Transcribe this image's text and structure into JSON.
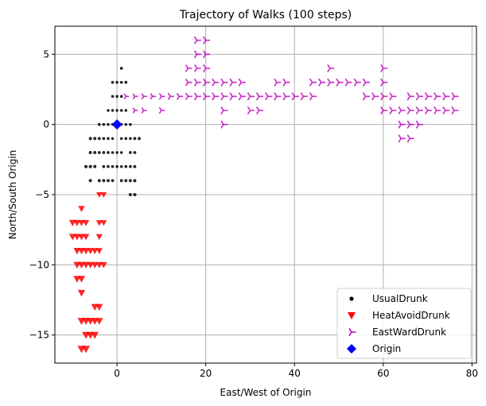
{
  "chart_data": {
    "type": "scatter",
    "title": "Trajectory of Walks (100 steps)",
    "xlabel": "East/West of Origin",
    "ylabel": "North/South Origin",
    "xlim": [
      -14,
      81
    ],
    "ylim": [
      -17,
      7
    ],
    "xticks": [
      0,
      20,
      40,
      60,
      80
    ],
    "yticks": [
      -15,
      -10,
      -5,
      0,
      5
    ],
    "grid": true,
    "legend_position": "bottom-right",
    "series": [
      {
        "name": "UsualDrunk",
        "marker": "circle",
        "color": "#000000",
        "points": [
          [
            -4,
            0
          ],
          [
            -3,
            0
          ],
          [
            -2,
            0
          ],
          [
            -1,
            0
          ],
          [
            0,
            0
          ],
          [
            1,
            0
          ],
          [
            2,
            0
          ],
          [
            3,
            0
          ],
          [
            -2,
            1
          ],
          [
            -1,
            1
          ],
          [
            0,
            1
          ],
          [
            1,
            1
          ],
          [
            2,
            1
          ],
          [
            -1,
            2
          ],
          [
            0,
            2
          ],
          [
            1,
            2
          ],
          [
            -1,
            3
          ],
          [
            0,
            3
          ],
          [
            1,
            3
          ],
          [
            2,
            3
          ],
          [
            1,
            4
          ],
          [
            -6,
            -1
          ],
          [
            -5,
            -1
          ],
          [
            -4,
            -1
          ],
          [
            -3,
            -1
          ],
          [
            -2,
            -1
          ],
          [
            -1,
            -1
          ],
          [
            1,
            -1
          ],
          [
            2,
            -1
          ],
          [
            3,
            -1
          ],
          [
            4,
            -1
          ],
          [
            5,
            -1
          ],
          [
            -6,
            -2
          ],
          [
            -5,
            -2
          ],
          [
            -4,
            -2
          ],
          [
            -3,
            -2
          ],
          [
            -2,
            -2
          ],
          [
            -1,
            -2
          ],
          [
            0,
            -2
          ],
          [
            1,
            -2
          ],
          [
            3,
            -2
          ],
          [
            4,
            -2
          ],
          [
            -7,
            -3
          ],
          [
            -6,
            -3
          ],
          [
            -5,
            -3
          ],
          [
            -3,
            -3
          ],
          [
            -2,
            -3
          ],
          [
            -1,
            -3
          ],
          [
            0,
            -3
          ],
          [
            1,
            -3
          ],
          [
            2,
            -3
          ],
          [
            3,
            -3
          ],
          [
            4,
            -3
          ],
          [
            -6,
            -4
          ],
          [
            -4,
            -4
          ],
          [
            -3,
            -4
          ],
          [
            -2,
            -4
          ],
          [
            -1,
            -4
          ],
          [
            1,
            -4
          ],
          [
            2,
            -4
          ],
          [
            3,
            -4
          ],
          [
            4,
            -4
          ],
          [
            3,
            -5
          ],
          [
            4,
            -5
          ]
        ]
      },
      {
        "name": "HeatAvoidDrunk",
        "marker": "triangle-down",
        "color": "#ff0000",
        "points": [
          [
            -4,
            -5
          ],
          [
            -3,
            -5
          ],
          [
            -8,
            -6
          ],
          [
            -10,
            -7
          ],
          [
            -9,
            -7
          ],
          [
            -8,
            -7
          ],
          [
            -7,
            -7
          ],
          [
            -4,
            -7
          ],
          [
            -3,
            -7
          ],
          [
            -10,
            -8
          ],
          [
            -9,
            -8
          ],
          [
            -8,
            -8
          ],
          [
            -7,
            -8
          ],
          [
            -4,
            -8
          ],
          [
            -9,
            -9
          ],
          [
            -8,
            -9
          ],
          [
            -7,
            -9
          ],
          [
            -6,
            -9
          ],
          [
            -5,
            -9
          ],
          [
            -4,
            -9
          ],
          [
            -9,
            -10
          ],
          [
            -8,
            -10
          ],
          [
            -7,
            -10
          ],
          [
            -6,
            -10
          ],
          [
            -5,
            -10
          ],
          [
            -4,
            -10
          ],
          [
            -3,
            -10
          ],
          [
            -9,
            -11
          ],
          [
            -8,
            -11
          ],
          [
            -8,
            -12
          ],
          [
            -4,
            -13
          ],
          [
            -5,
            -13
          ],
          [
            -8,
            -14
          ],
          [
            -7,
            -14
          ],
          [
            -6,
            -14
          ],
          [
            -5,
            -14
          ],
          [
            -4,
            -14
          ],
          [
            -7,
            -15
          ],
          [
            -6,
            -15
          ],
          [
            -5,
            -15
          ],
          [
            -8,
            -16
          ],
          [
            -7,
            -16
          ]
        ]
      },
      {
        "name": "EastWardDrunk",
        "marker": "tri-right",
        "color": "#c000c0",
        "points": [
          [
            20,
            6
          ],
          [
            18,
            6
          ],
          [
            20,
            5
          ],
          [
            18,
            5
          ],
          [
            16,
            4
          ],
          [
            18,
            4
          ],
          [
            20,
            4
          ],
          [
            48,
            4
          ],
          [
            60,
            4
          ],
          [
            16,
            3
          ],
          [
            18,
            3
          ],
          [
            20,
            3
          ],
          [
            22,
            3
          ],
          [
            24,
            3
          ],
          [
            26,
            3
          ],
          [
            28,
            3
          ],
          [
            36,
            3
          ],
          [
            38,
            3
          ],
          [
            44,
            3
          ],
          [
            46,
            3
          ],
          [
            48,
            3
          ],
          [
            50,
            3
          ],
          [
            52,
            3
          ],
          [
            54,
            3
          ],
          [
            56,
            3
          ],
          [
            60,
            3
          ],
          [
            2,
            2
          ],
          [
            4,
            2
          ],
          [
            6,
            2
          ],
          [
            8,
            2
          ],
          [
            10,
            2
          ],
          [
            12,
            2
          ],
          [
            14,
            2
          ],
          [
            16,
            2
          ],
          [
            18,
            2
          ],
          [
            20,
            2
          ],
          [
            22,
            2
          ],
          [
            24,
            2
          ],
          [
            26,
            2
          ],
          [
            28,
            2
          ],
          [
            30,
            2
          ],
          [
            32,
            2
          ],
          [
            34,
            2
          ],
          [
            36,
            2
          ],
          [
            38,
            2
          ],
          [
            40,
            2
          ],
          [
            42,
            2
          ],
          [
            44,
            2
          ],
          [
            56,
            2
          ],
          [
            58,
            2
          ],
          [
            60,
            2
          ],
          [
            62,
            2
          ],
          [
            66,
            2
          ],
          [
            68,
            2
          ],
          [
            70,
            2
          ],
          [
            72,
            2
          ],
          [
            74,
            2
          ],
          [
            76,
            2
          ],
          [
            4,
            1
          ],
          [
            6,
            1
          ],
          [
            10,
            1
          ],
          [
            24,
            1
          ],
          [
            30,
            1
          ],
          [
            32,
            1
          ],
          [
            60,
            1
          ],
          [
            62,
            1
          ],
          [
            64,
            1
          ],
          [
            66,
            1
          ],
          [
            68,
            1
          ],
          [
            70,
            1
          ],
          [
            72,
            1
          ],
          [
            74,
            1
          ],
          [
            76,
            1
          ],
          [
            24,
            0
          ],
          [
            64,
            0
          ],
          [
            66,
            0
          ],
          [
            68,
            0
          ],
          [
            64,
            -1
          ],
          [
            66,
            -1
          ]
        ]
      },
      {
        "name": "Origin",
        "marker": "diamond",
        "color": "#0000ff",
        "points": [
          [
            0,
            0
          ]
        ]
      }
    ]
  }
}
